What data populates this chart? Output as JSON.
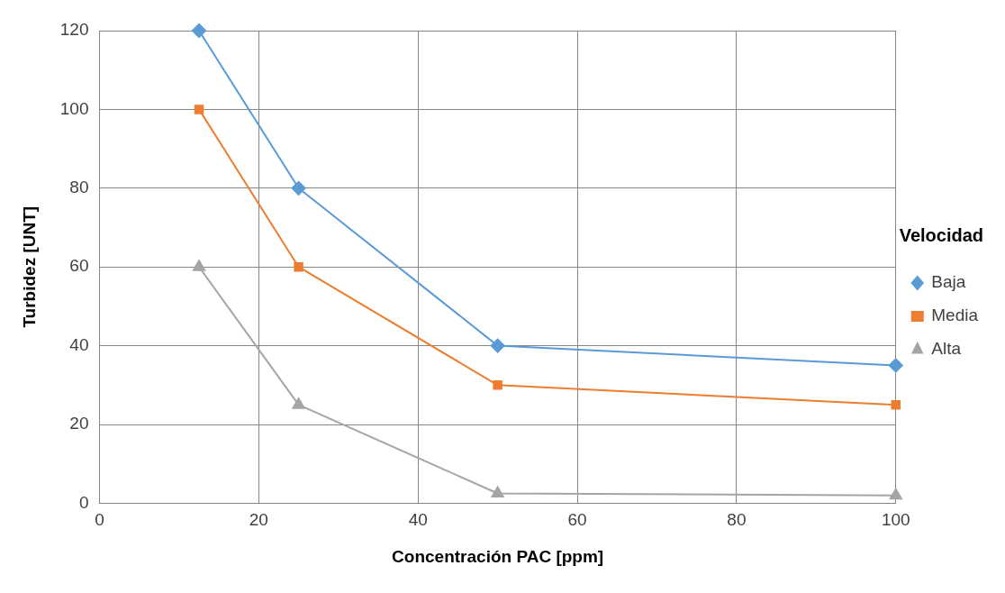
{
  "chart_data": {
    "type": "line",
    "xlabel": "Concentración PAC [ppm]",
    "ylabel": "Turbidez [UNT]",
    "legend_title": "Velocidad",
    "x": [
      12.5,
      25,
      50,
      100
    ],
    "series": [
      {
        "name": "Baja",
        "color": "#5b9bd5",
        "marker": "diamond",
        "values": [
          120,
          80,
          40,
          35
        ]
      },
      {
        "name": "Media",
        "color": "#ed7d31",
        "marker": "square",
        "values": [
          100,
          60,
          30,
          25
        ]
      },
      {
        "name": "Alta",
        "color": "#a5a5a5",
        "marker": "triangle",
        "values": [
          60,
          25,
          2.5,
          2
        ]
      }
    ],
    "xlim": [
      0,
      100
    ],
    "xticks": [
      0,
      20,
      40,
      60,
      80,
      100
    ],
    "ylim": [
      0,
      120
    ],
    "yticks": [
      0,
      20,
      40,
      60,
      80,
      100,
      120
    ],
    "grid": true,
    "legend": "right",
    "line_style": "solid"
  }
}
